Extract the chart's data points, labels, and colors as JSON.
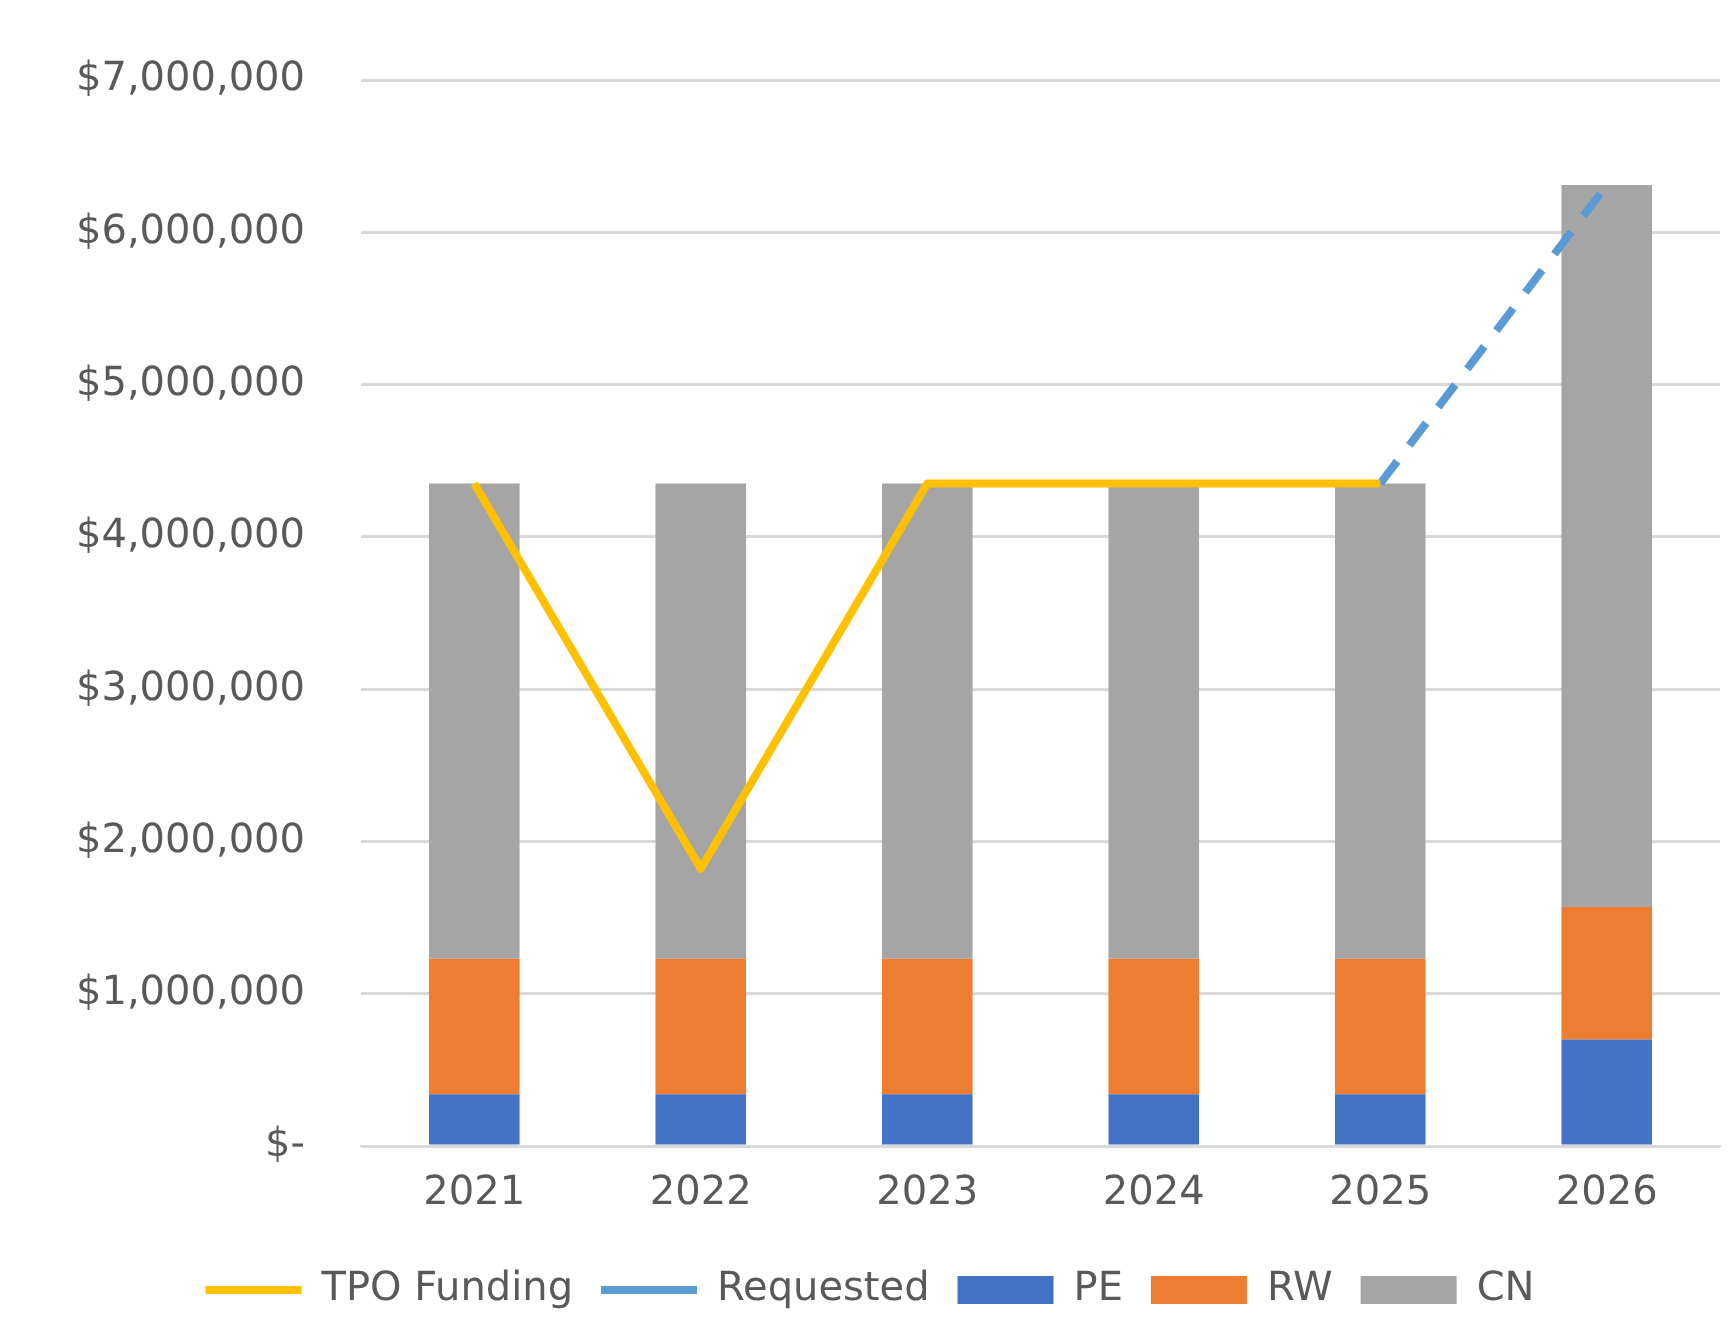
{
  "chart_data": {
    "type": "bar",
    "stacked": true,
    "categories": [
      "2021",
      "2022",
      "2023",
      "2024",
      "2025",
      "2026"
    ],
    "series": [
      {
        "name": "PE",
        "color": "#4472c4",
        "values": [
          340000,
          340000,
          340000,
          340000,
          340000,
          700000
        ]
      },
      {
        "name": "RW",
        "color": "#ed7d31",
        "values": [
          890000,
          890000,
          890000,
          890000,
          890000,
          870000
        ]
      },
      {
        "name": "CN",
        "color": "#a5a5a5",
        "values": [
          3120000,
          3120000,
          3120000,
          3120000,
          3120000,
          4740000
        ]
      },
      {
        "name": "TPO Funding",
        "type": "line",
        "color": "#ffc000",
        "line_style": "solid",
        "values": [
          4350000,
          1820000,
          4350000,
          4350000,
          4350000,
          null
        ]
      },
      {
        "name": "Requested",
        "type": "line",
        "color": "#5b9bd5",
        "line_style": "dashed",
        "values": [
          null,
          null,
          null,
          null,
          4350000,
          6310000
        ]
      }
    ],
    "ylim": [
      0,
      7000000
    ],
    "yticks": [
      {
        "value": 0,
        "label": "$-"
      },
      {
        "value": 1000000,
        "label": "$1,000,000"
      },
      {
        "value": 2000000,
        "label": "$2,000,000"
      },
      {
        "value": 3000000,
        "label": "$3,000,000"
      },
      {
        "value": 4000000,
        "label": "$4,000,000"
      },
      {
        "value": 5000000,
        "label": "$5,000,000"
      },
      {
        "value": 6000000,
        "label": "$6,000,000"
      },
      {
        "value": 7000000,
        "label": "$7,000,000"
      }
    ],
    "grid": "y",
    "legend": "bottom",
    "marker": "none"
  }
}
